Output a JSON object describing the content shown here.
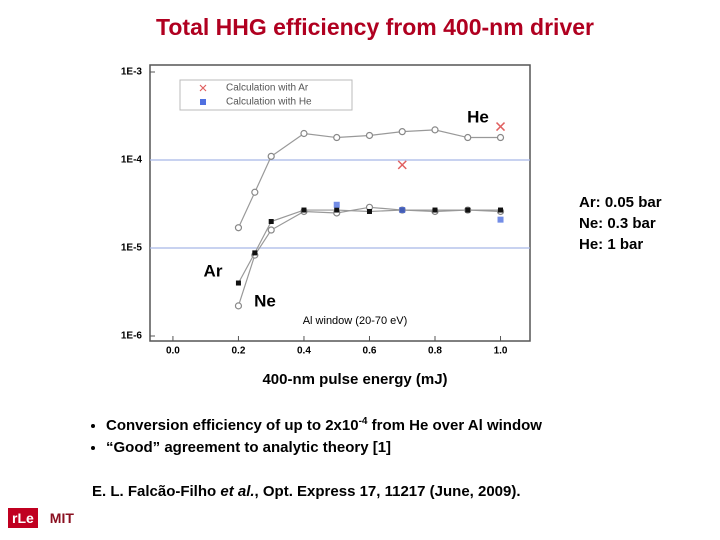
{
  "slide": {
    "title": "Total HHG efficiency from 400-nm driver",
    "pressures": [
      "Ar: 0.05 bar",
      "Ne: 0.3 bar",
      "He: 1 bar"
    ],
    "bullets": [
      {
        "text": "Conversion efficiency of up to 2x10",
        "sup": "-4",
        "tail": " from He over Al window"
      },
      {
        "text": "“Good” agreement to analytic theory [1]"
      }
    ],
    "citation": {
      "authors": "E. L. Falcão-Filho",
      "etal": " et al.",
      "rest": ", Opt. Express 17, 11217 (June, 2009)."
    },
    "logos": [
      "rLe",
      "MIT"
    ]
  },
  "chart_data": {
    "type": "line",
    "x_label": "400-nm pulse energy (mJ)",
    "log_y": true,
    "grid": true,
    "grid_color": "#a8b8e8",
    "xlim": [
      -0.07,
      1.09
    ],
    "ylim": [
      1e-06,
      0.001
    ],
    "xticks": [
      {
        "value": 0,
        "label": "0.0"
      },
      0.2,
      0.4,
      0.6,
      0.8,
      {
        "value": 1,
        "label": "1.0"
      }
    ],
    "yticks": [
      {
        "value": 1e-06,
        "label": "1E-6"
      },
      {
        "value": 1e-05,
        "label": "1E-5"
      },
      {
        "value": 0.0001,
        "label": "1E-4"
      },
      {
        "value": 0.001,
        "label": "1E-3"
      }
    ],
    "annotation": "Al window (20-70 eV)",
    "series": [
      {
        "name": "He",
        "style": "line",
        "marker": "circle",
        "color": "#888888",
        "x": [
          0.2,
          0.25,
          0.3,
          0.4,
          0.5,
          0.6,
          0.7,
          0.8,
          0.9,
          1.0
        ],
        "values": [
          1.7e-05,
          4.3e-05,
          0.00011,
          0.0002,
          0.00018,
          0.00019,
          0.00021,
          0.00022,
          0.00018,
          0.00018
        ]
      },
      {
        "name": "Ne",
        "style": "line",
        "marker": "circle",
        "color": "#888888",
        "x": [
          0.2,
          0.25,
          0.3,
          0.4,
          0.5,
          0.6,
          0.7,
          0.8,
          0.9,
          1.0
        ],
        "values": [
          2.2e-06,
          8.3e-06,
          1.6e-05,
          2.6e-05,
          2.5e-05,
          2.9e-05,
          2.7e-05,
          2.6e-05,
          2.7e-05,
          2.6e-05
        ]
      },
      {
        "name": "Ar",
        "style": "line",
        "marker": "filled-square",
        "color": "#111111",
        "x": [
          0.2,
          0.25,
          0.3,
          0.4,
          0.5,
          0.6,
          0.7,
          0.8,
          0.9,
          1.0
        ],
        "values": [
          4e-06,
          8.8e-06,
          2e-05,
          2.7e-05,
          2.7e-05,
          2.6e-05,
          2.7e-05,
          2.7e-05,
          2.7e-05,
          2.7e-05
        ]
      },
      {
        "name": "Calculation with Ar",
        "style": "points",
        "marker": "x",
        "color": "#e06060",
        "x": [
          0.7,
          1.0
        ],
        "values": [
          8.8e-05,
          0.00024
        ]
      },
      {
        "name": "Calculation with He",
        "style": "points",
        "marker": "square",
        "color": "#5070e0",
        "x": [
          0.5,
          0.7,
          1.0
        ],
        "values": [
          3.1e-05,
          2.7e-05,
          2.1e-05
        ]
      }
    ]
  }
}
